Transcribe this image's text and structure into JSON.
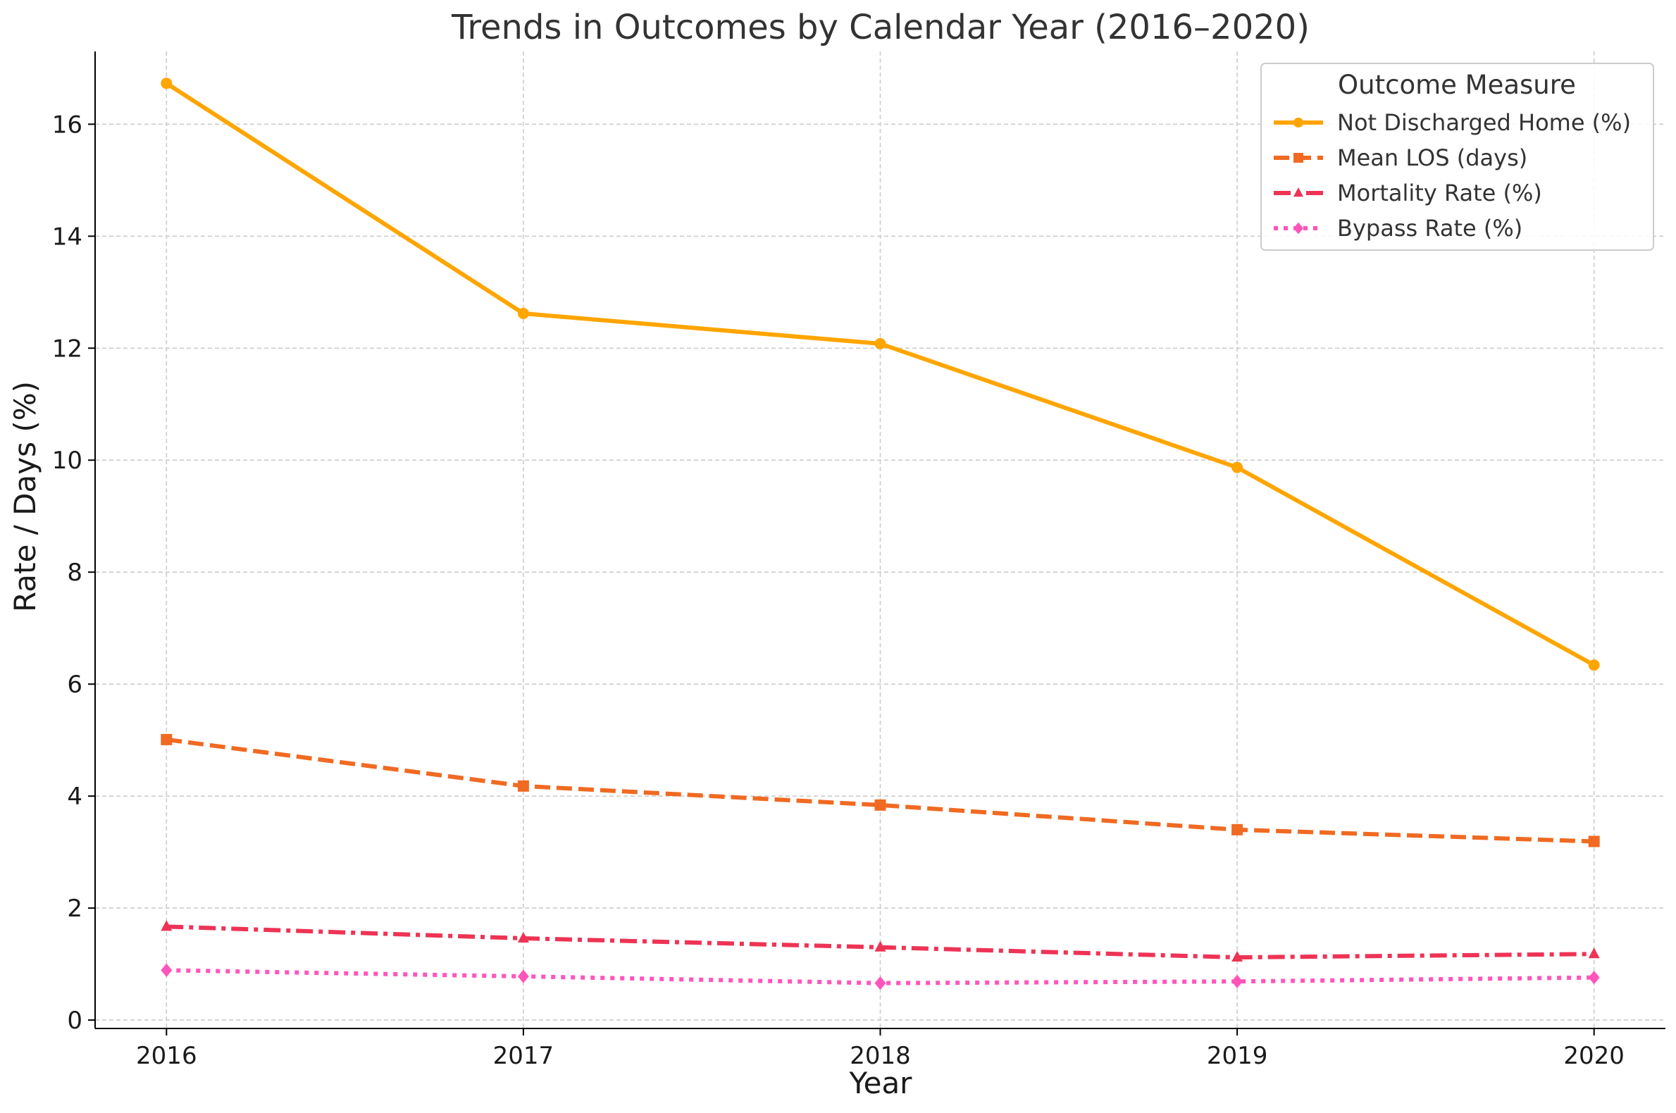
{
  "chart_data": {
    "type": "line",
    "title": "Trends in Outcomes by Calendar Year (2016–2020)",
    "xlabel": "Year",
    "ylabel": "Rate / Days (%)",
    "x": [
      2016,
      2017,
      2018,
      2019,
      2020
    ],
    "xlim": [
      2015.8,
      2020.2
    ],
    "ylim": [
      -0.15,
      17.3
    ],
    "yticks": [
      0,
      2,
      4,
      6,
      8,
      10,
      12,
      14,
      16
    ],
    "grid": true,
    "legend": {
      "title": "Outcome Measure",
      "placement": "top-right"
    },
    "series": [
      {
        "name": "Not Discharged Home (%)",
        "values": [
          16.73,
          12.62,
          12.08,
          9.87,
          6.34
        ],
        "color": "#FFA500",
        "line": "solid",
        "marker": "circle"
      },
      {
        "name": "Mean LOS (days)",
        "values": [
          5.01,
          4.18,
          3.84,
          3.4,
          3.19
        ],
        "color": "#F06A22",
        "line": "dashed",
        "marker": "square"
      },
      {
        "name": "Mortality Rate (%)",
        "values": [
          1.67,
          1.46,
          1.3,
          1.12,
          1.18
        ],
        "color": "#EE3355",
        "line": "dashdot",
        "marker": "triangle"
      },
      {
        "name": "Bypass Rate (%)",
        "values": [
          0.89,
          0.78,
          0.66,
          0.69,
          0.76
        ],
        "color": "#FF55BB",
        "line": "dotted",
        "marker": "diamond"
      }
    ]
  }
}
